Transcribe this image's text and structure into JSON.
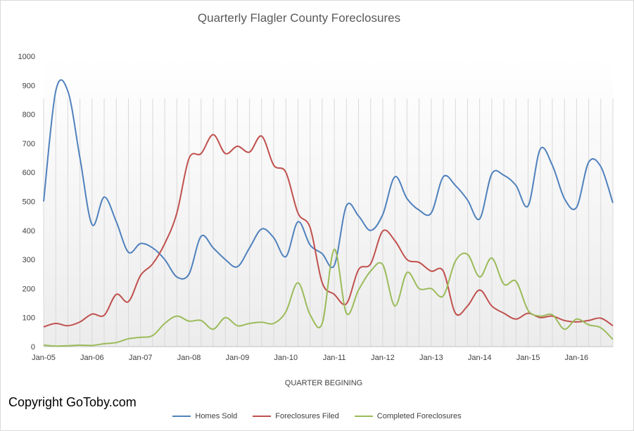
{
  "title": "Quarterly Flagler County Foreclosures",
  "copyright": "Copyright GoToby.com",
  "chart_data": {
    "type": "line",
    "title": "Quarterly Flagler County Foreclosures",
    "xlabel": "QUARTER BEGINING",
    "ylabel": "",
    "ylim": [
      0,
      1000
    ],
    "yticks": [
      0,
      100,
      200,
      300,
      400,
      500,
      600,
      700,
      800,
      900,
      1000
    ],
    "xtick_labels": [
      "Jan-05",
      "Jan-06",
      "Jan-07",
      "Jan-08",
      "Jan-09",
      "Jan-10",
      "Jan-11",
      "Jan-12",
      "Jan-13",
      "Jan-14",
      "Jan-15",
      "Jan-16"
    ],
    "x_start": "2005Q1",
    "grid": "vertical",
    "legend": "bottom",
    "series": [
      {
        "name": "Homes Sold",
        "color": "#4f81bd",
        "values": [
          500,
          880,
          880,
          650,
          420,
          515,
          430,
          325,
          355,
          340,
          300,
          240,
          250,
          380,
          340,
          300,
          275,
          340,
          405,
          375,
          310,
          430,
          350,
          320,
          280,
          485,
          450,
          400,
          455,
          585,
          510,
          470,
          460,
          585,
          555,
          505,
          440,
          595,
          590,
          555,
          485,
          680,
          625,
          510,
          480,
          635,
          620,
          495
        ]
      },
      {
        "name": "Foreclosures Filed",
        "color": "#c0504d",
        "values": [
          68,
          80,
          72,
          85,
          112,
          108,
          180,
          155,
          245,
          285,
          355,
          460,
          648,
          665,
          730,
          665,
          690,
          670,
          725,
          625,
          600,
          460,
          410,
          220,
          180,
          148,
          265,
          285,
          398,
          365,
          300,
          290,
          260,
          260,
          115,
          140,
          195,
          140,
          115,
          95,
          115,
          100,
          105,
          90,
          85,
          90,
          98,
          72
        ]
      },
      {
        "name": "Completed Foreclosures",
        "color": "#9bbb59",
        "values": [
          5,
          2,
          3,
          5,
          4,
          10,
          14,
          27,
          32,
          38,
          80,
          105,
          88,
          90,
          60,
          100,
          72,
          80,
          84,
          80,
          120,
          220,
          110,
          80,
          335,
          115,
          195,
          260,
          282,
          140,
          255,
          200,
          200,
          175,
          295,
          318,
          240,
          305,
          215,
          225,
          125,
          105,
          110,
          60,
          95,
          75,
          65,
          25
        ]
      }
    ]
  }
}
